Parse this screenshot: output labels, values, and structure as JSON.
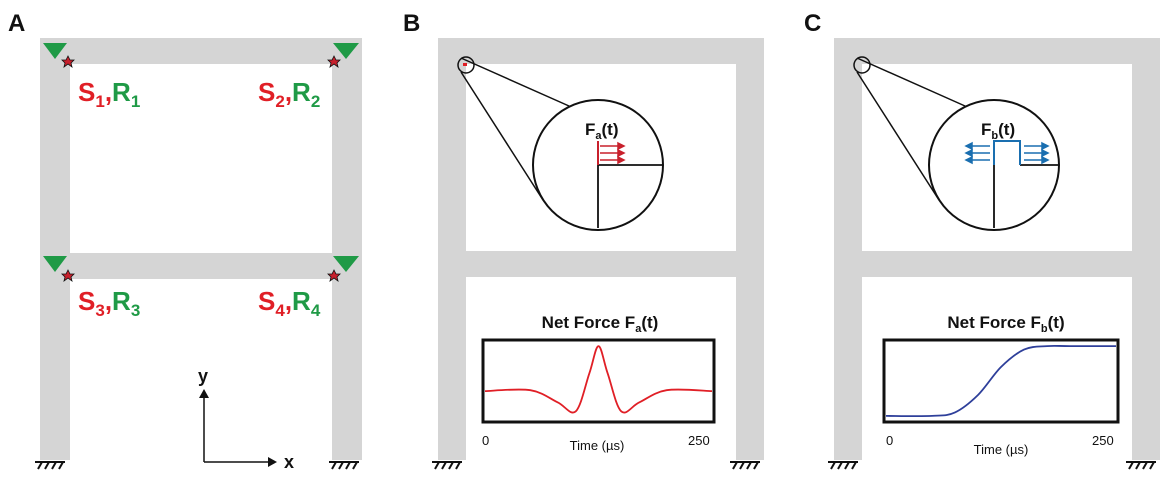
{
  "panels": {
    "a": {
      "letter": "A"
    },
    "b": {
      "letter": "B"
    },
    "c": {
      "letter": "C"
    }
  },
  "sensors": [
    {
      "s": "S",
      "s_sub": "1",
      "sep": ",",
      "r": "R",
      "r_sub": "1"
    },
    {
      "s": "S",
      "s_sub": "2",
      "sep": ",",
      "r": "R",
      "r_sub": "2"
    },
    {
      "s": "S",
      "s_sub": "3",
      "sep": ",",
      "r": "R",
      "r_sub": "3"
    },
    {
      "s": "S",
      "s_sub": "4",
      "sep": ",",
      "r": "R",
      "r_sub": "4"
    }
  ],
  "axes": {
    "x_label": "x",
    "y_label": "y"
  },
  "force_a": {
    "main": "F",
    "sub": "a",
    "tail": "(t)"
  },
  "force_b": {
    "main": "F",
    "sub": "b",
    "tail": "(t)"
  },
  "plot_a": {
    "title_main": "Net Force F",
    "title_sub": "a",
    "title_tail": "(t)",
    "xlabel": "Time (µs)",
    "xmin_label": "0",
    "xmax_label": "250"
  },
  "plot_b": {
    "title_main": "Net Force F",
    "title_sub": "b",
    "title_tail": "(t)",
    "xlabel": "Time (µs)",
    "xmin_label": "0",
    "xmax_label": "250"
  },
  "colors": {
    "frame": "#d5d5d5",
    "source": "#e01f26",
    "receiver": "#1f9a46",
    "sensor_triangle": "#1f9a46",
    "force_a": "#c8202c",
    "force_b": "#1a6fb0",
    "curve_a": "#e01f26",
    "curve_b": "#2e3f9a"
  },
  "chart_data": [
    {
      "type": "line",
      "title": "Net Force Fa(t)",
      "xlabel": "Time (µs)",
      "xlim": [
        0,
        250
      ],
      "series": [
        {
          "x": [
            0,
            50,
            80,
            100,
            115,
            125,
            135,
            150,
            170,
            200,
            250
          ],
          "y": [
            0,
            0.02,
            -0.25,
            -0.45,
            0.4,
            1,
            0.4,
            -0.45,
            -0.25,
            0.02,
            0
          ]
        }
      ]
    },
    {
      "type": "line",
      "title": "Net Force Fb(t)",
      "xlabel": "Time (µs)",
      "xlim": [
        0,
        250
      ],
      "series": [
        {
          "x": [
            0,
            50,
            75,
            100,
            125,
            150,
            175,
            200,
            250
          ],
          "y": [
            0,
            0,
            0.05,
            0.3,
            0.7,
            0.95,
            1,
            1,
            1
          ]
        }
      ]
    }
  ]
}
